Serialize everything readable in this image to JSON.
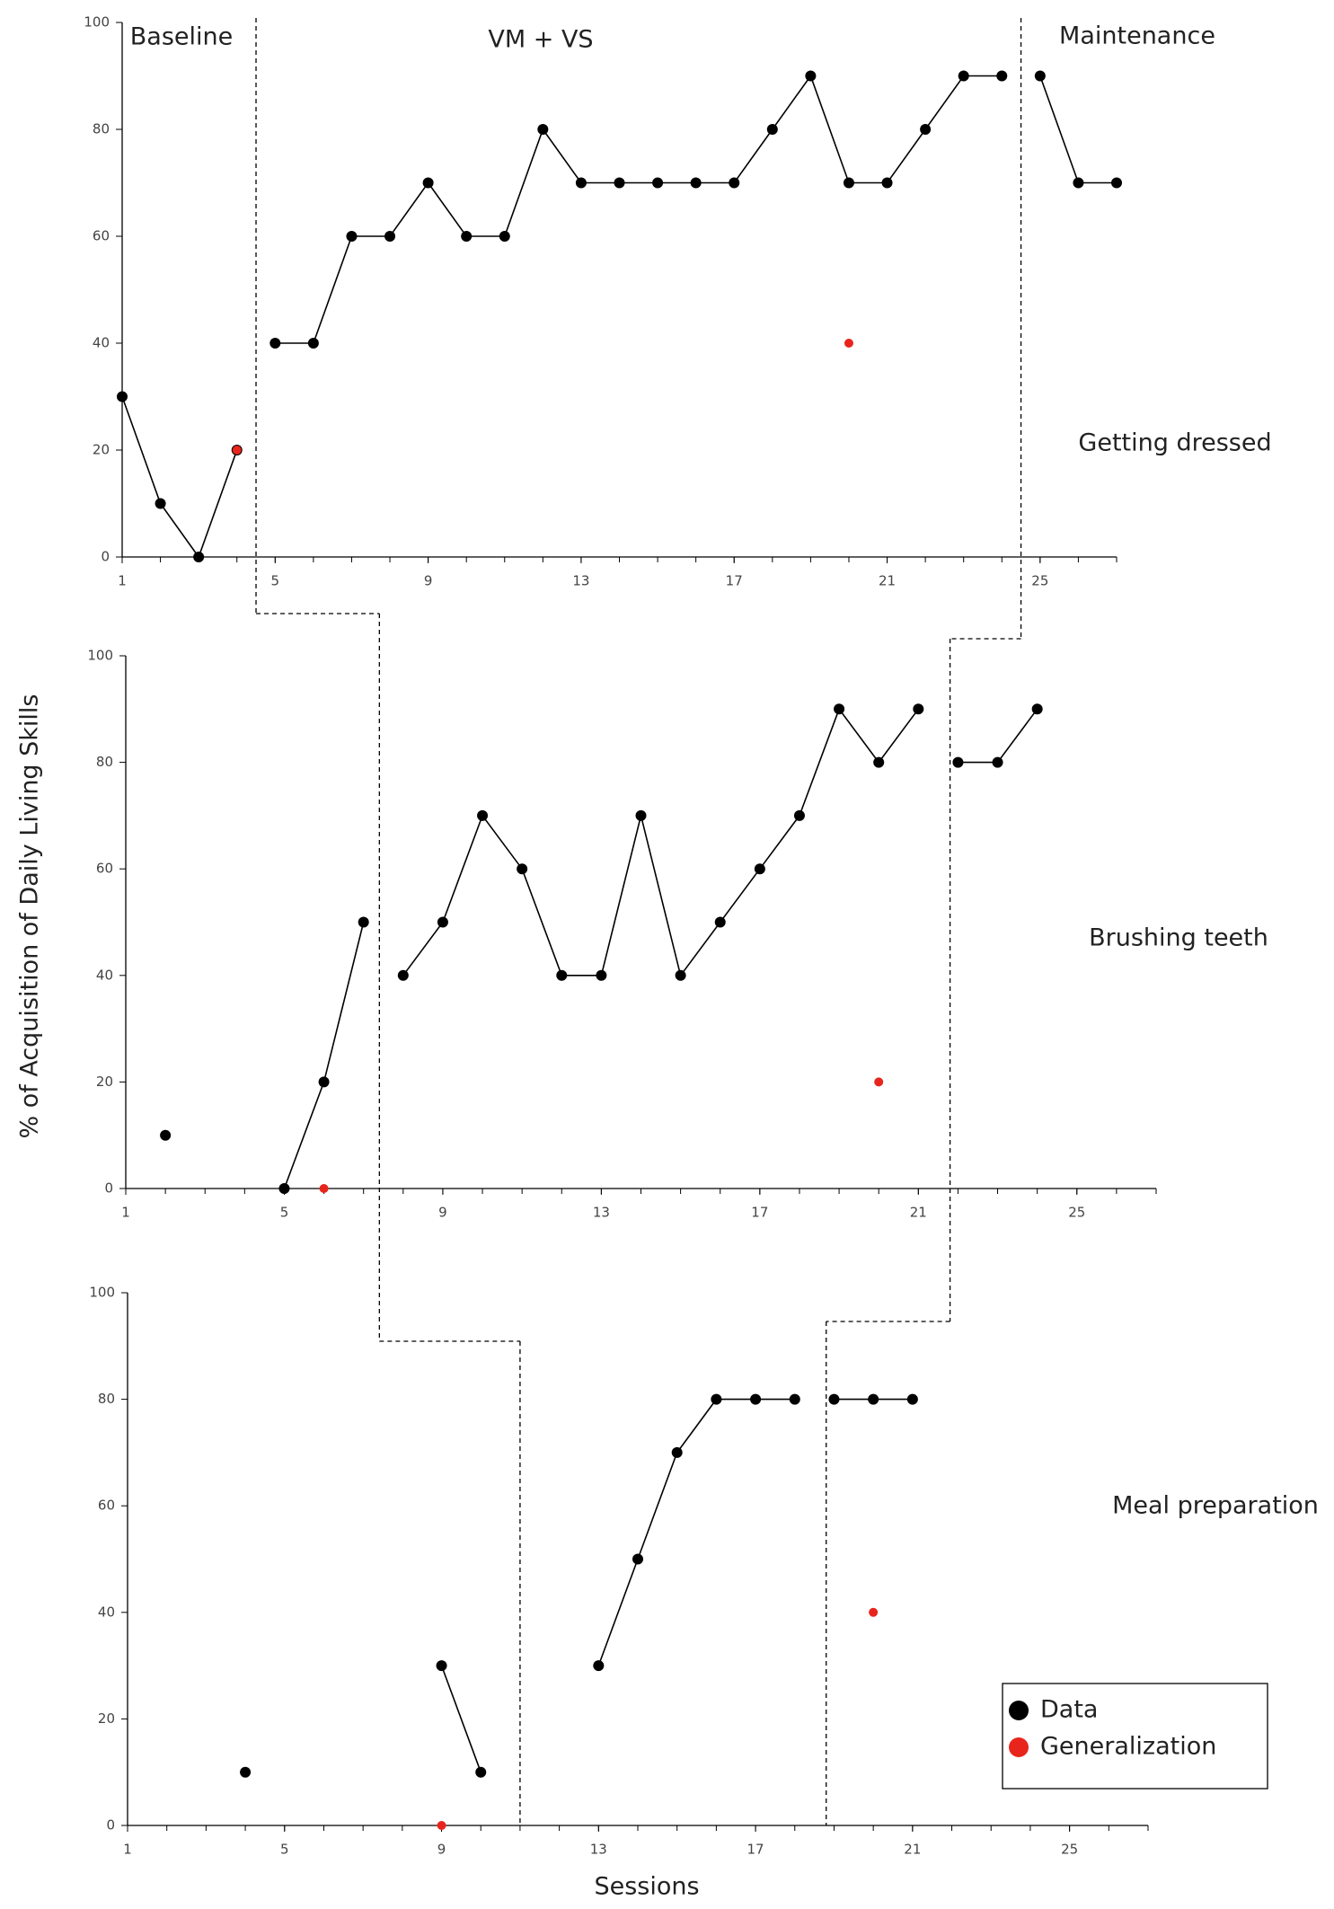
{
  "chart_data": [
    {
      "type": "line",
      "label": "Getting dressed",
      "annotations": [
        "Baseline",
        "VM + VS",
        "Maintenance"
      ],
      "x": [
        1,
        2,
        3,
        4,
        5,
        6,
        7,
        8,
        9,
        10,
        11,
        12,
        13,
        14,
        15,
        16,
        17,
        18,
        19,
        20,
        21,
        22,
        23,
        24,
        25,
        26,
        27
      ],
      "xlim": [
        1,
        27
      ],
      "xticks": [
        1,
        5,
        9,
        13,
        17,
        21,
        25
      ],
      "ylim": [
        0,
        100
      ],
      "yticks": [
        0,
        20,
        40,
        60,
        80,
        100
      ],
      "phase_lines": [
        4.5,
        24.5
      ],
      "series": [
        {
          "name": "Data",
          "color": "#000000",
          "values": [
            30,
            10,
            0,
            20,
            40,
            40,
            60,
            60,
            70,
            60,
            60,
            80,
            70,
            70,
            70,
            70,
            70,
            80,
            90,
            70,
            70,
            80,
            90,
            90,
            90,
            70,
            70
          ]
        },
        {
          "name": "Generalization",
          "color": "#e8251c",
          "values": [
            null,
            null,
            null,
            20,
            null,
            null,
            null,
            null,
            null,
            null,
            null,
            null,
            null,
            null,
            null,
            null,
            null,
            null,
            null,
            40,
            null,
            null,
            null,
            null,
            null,
            null,
            null
          ]
        }
      ]
    },
    {
      "type": "line",
      "label": "Brushing teeth",
      "ylabel": "% of Acquisition of Daily Living Skills",
      "x": [
        1,
        2,
        3,
        4,
        5,
        6,
        7,
        8,
        9,
        10,
        11,
        12,
        13,
        14,
        15,
        16,
        17,
        18,
        19,
        20,
        21,
        22,
        23,
        24,
        25,
        26,
        27
      ],
      "xlim": [
        1,
        27
      ],
      "xticks": [
        1,
        5,
        9,
        13,
        17,
        21,
        25
      ],
      "ylim": [
        0,
        100
      ],
      "yticks": [
        0,
        20,
        40,
        60,
        80,
        100
      ],
      "phase_lines": [
        7.4,
        21.8
      ],
      "series": [
        {
          "name": "Data",
          "color": "#000000",
          "values": [
            null,
            10,
            null,
            null,
            0,
            20,
            50,
            40,
            50,
            70,
            60,
            40,
            40,
            70,
            40,
            50,
            60,
            70,
            90,
            80,
            90,
            80,
            80,
            90,
            null,
            null,
            null
          ]
        },
        {
          "name": "Generalization",
          "color": "#e8251c",
          "values": [
            null,
            null,
            null,
            null,
            null,
            0,
            null,
            null,
            null,
            null,
            null,
            null,
            null,
            null,
            null,
            null,
            null,
            null,
            null,
            20,
            null,
            null,
            null,
            null,
            null,
            null,
            null
          ]
        }
      ]
    },
    {
      "type": "line",
      "label": "Meal preparation",
      "xlabel": "Sessions",
      "legend": "lower right",
      "x": [
        1,
        2,
        3,
        4,
        5,
        6,
        7,
        8,
        9,
        10,
        11,
        12,
        13,
        14,
        15,
        16,
        17,
        18,
        19,
        20,
        21,
        22,
        23,
        24,
        25,
        26,
        27
      ],
      "xlim": [
        1,
        27
      ],
      "xticks": [
        1,
        5,
        9,
        13,
        17,
        21,
        25
      ],
      "ylim": [
        0,
        100
      ],
      "yticks": [
        0,
        20,
        40,
        60,
        80,
        100
      ],
      "phase_lines": [
        11,
        18.8
      ],
      "series": [
        {
          "name": "Data",
          "color": "#000000",
          "values": [
            null,
            null,
            null,
            10,
            null,
            null,
            null,
            null,
            30,
            10,
            null,
            null,
            30,
            50,
            70,
            80,
            80,
            80,
            80,
            80,
            80,
            null,
            null,
            null,
            null,
            null,
            null
          ]
        },
        {
          "name": "Generalization",
          "color": "#e8251c",
          "values": [
            null,
            null,
            null,
            null,
            null,
            null,
            null,
            null,
            0,
            null,
            null,
            null,
            null,
            null,
            null,
            null,
            null,
            null,
            null,
            40,
            null,
            null,
            null,
            null,
            null,
            null,
            null
          ]
        }
      ]
    }
  ]
}
